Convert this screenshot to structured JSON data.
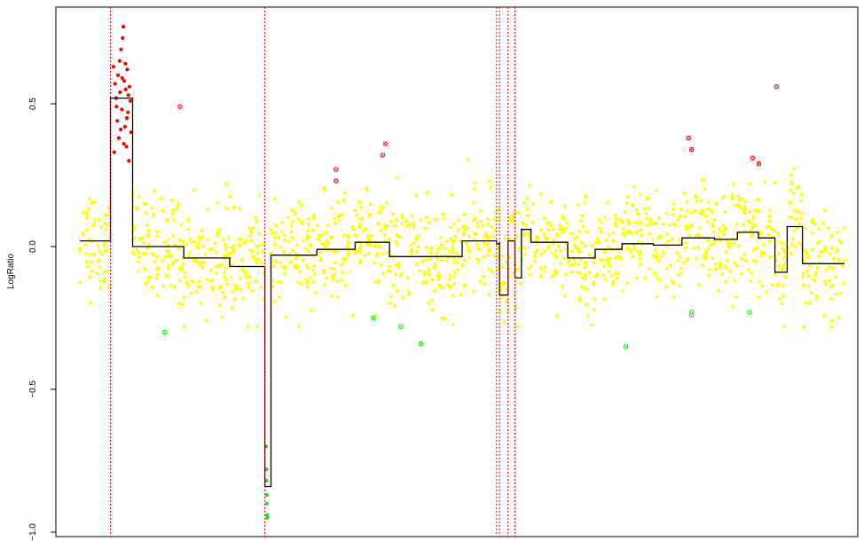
{
  "chart_data": {
    "type": "scatter",
    "title": "",
    "xlabel": "",
    "ylabel": "LogRatio",
    "ylim": [
      -1.0,
      0.8
    ],
    "xlim": [
      0,
      2000
    ],
    "yticks": [
      {
        "value": 0.5,
        "label": "0.5"
      },
      {
        "value": 0.0,
        "label": "0.0"
      },
      {
        "value": -0.5,
        "label": "−0.5"
      },
      {
        "value": -1.0,
        "label": "−1.0"
      }
    ],
    "colors": {
      "normal": "#ffff00",
      "gain": "#ee0000",
      "loss": "#00ee00",
      "segment": "#000000",
      "breakpoint": "#ee0000"
    },
    "breakpoints_x": [
      80,
      484,
      1090,
      1098,
      1120,
      1138
    ],
    "segments": [
      {
        "x0": 0,
        "x1": 80,
        "y": 0.02
      },
      {
        "x0": 80,
        "x1": 138,
        "y": 0.52
      },
      {
        "x0": 138,
        "x1": 272,
        "y": 0.0
      },
      {
        "x0": 272,
        "x1": 392,
        "y": -0.04
      },
      {
        "x0": 392,
        "x1": 484,
        "y": -0.07
      },
      {
        "x0": 484,
        "x1": 500,
        "y": -0.84
      },
      {
        "x0": 500,
        "x1": 620,
        "y": -0.03
      },
      {
        "x0": 620,
        "x1": 720,
        "y": -0.01
      },
      {
        "x0": 720,
        "x1": 810,
        "y": 0.015
      },
      {
        "x0": 810,
        "x1": 1000,
        "y": -0.035
      },
      {
        "x0": 1000,
        "x1": 1090,
        "y": 0.02
      },
      {
        "x0": 1090,
        "x1": 1098,
        "y": 0.01
      },
      {
        "x0": 1098,
        "x1": 1120,
        "y": -0.17
      },
      {
        "x0": 1120,
        "x1": 1138,
        "y": 0.02
      },
      {
        "x0": 1138,
        "x1": 1155,
        "y": -0.11
      },
      {
        "x0": 1155,
        "x1": 1180,
        "y": 0.06
      },
      {
        "x0": 1180,
        "x1": 1276,
        "y": 0.015
      },
      {
        "x0": 1276,
        "x1": 1348,
        "y": -0.04
      },
      {
        "x0": 1348,
        "x1": 1418,
        "y": -0.01
      },
      {
        "x0": 1418,
        "x1": 1500,
        "y": 0.01
      },
      {
        "x0": 1500,
        "x1": 1575,
        "y": 0.005
      },
      {
        "x0": 1575,
        "x1": 1660,
        "y": 0.03
      },
      {
        "x0": 1660,
        "x1": 1720,
        "y": 0.025
      },
      {
        "x0": 1720,
        "x1": 1775,
        "y": 0.05
      },
      {
        "x0": 1775,
        "x1": 1818,
        "y": 0.03
      },
      {
        "x0": 1818,
        "x1": 1850,
        "y": -0.09
      },
      {
        "x0": 1850,
        "x1": 1890,
        "y": 0.07
      },
      {
        "x0": 1890,
        "x1": 2000,
        "y": -0.06
      }
    ],
    "noise_sd": 0.09,
    "gain_points": [
      {
        "x": 88,
        "y": 0.63
      },
      {
        "x": 92,
        "y": 0.57
      },
      {
        "x": 95,
        "y": 0.52
      },
      {
        "x": 98,
        "y": 0.44
      },
      {
        "x": 100,
        "y": 0.6
      },
      {
        "x": 102,
        "y": 0.38
      },
      {
        "x": 105,
        "y": 0.54
      },
      {
        "x": 108,
        "y": 0.69
      },
      {
        "x": 110,
        "y": 0.48
      },
      {
        "x": 112,
        "y": 0.73
      },
      {
        "x": 114,
        "y": 0.77
      },
      {
        "x": 116,
        "y": 0.58
      },
      {
        "x": 118,
        "y": 0.42
      },
      {
        "x": 120,
        "y": 0.55
      },
      {
        "x": 122,
        "y": 0.35
      },
      {
        "x": 124,
        "y": 0.62
      },
      {
        "x": 126,
        "y": 0.47
      },
      {
        "x": 128,
        "y": 0.3
      },
      {
        "x": 130,
        "y": 0.56
      },
      {
        "x": 132,
        "y": 0.51
      },
      {
        "x": 90,
        "y": 0.33
      },
      {
        "x": 96,
        "y": 0.49
      },
      {
        "x": 104,
        "y": 0.65
      },
      {
        "x": 107,
        "y": 0.41
      },
      {
        "x": 111,
        "y": 0.59
      },
      {
        "x": 115,
        "y": 0.36
      },
      {
        "x": 119,
        "y": 0.64
      },
      {
        "x": 123,
        "y": 0.45
      },
      {
        "x": 127,
        "y": 0.53
      },
      {
        "x": 134,
        "y": 0.4
      }
    ],
    "loss_points": [
      {
        "x": 487,
        "y": -0.7
      },
      {
        "x": 488,
        "y": -0.78
      },
      {
        "x": 488,
        "y": -0.82
      },
      {
        "x": 489,
        "y": -0.87
      },
      {
        "x": 489,
        "y": -0.9
      },
      {
        "x": 490,
        "y": -0.94
      },
      {
        "x": 490,
        "y": -0.95
      }
    ],
    "outliers_gain": [
      {
        "x": 262,
        "y": 0.49
      },
      {
        "x": 670,
        "y": 0.27
      },
      {
        "x": 670,
        "y": 0.23
      },
      {
        "x": 792,
        "y": 0.32
      },
      {
        "x": 800,
        "y": 0.36
      },
      {
        "x": 1592,
        "y": 0.38
      },
      {
        "x": 1600,
        "y": 0.34
      },
      {
        "x": 1760,
        "y": 0.31
      },
      {
        "x": 1776,
        "y": 0.29
      },
      {
        "x": 1822,
        "y": 0.56
      }
    ],
    "outliers_loss": [
      {
        "x": 222,
        "y": -0.3
      },
      {
        "x": 768,
        "y": -0.25
      },
      {
        "x": 840,
        "y": -0.28
      },
      {
        "x": 892,
        "y": -0.34
      },
      {
        "x": 1428,
        "y": -0.35
      },
      {
        "x": 1600,
        "y": -0.23
      },
      {
        "x": 1600,
        "y": -0.24
      },
      {
        "x": 1752,
        "y": -0.23
      }
    ]
  }
}
